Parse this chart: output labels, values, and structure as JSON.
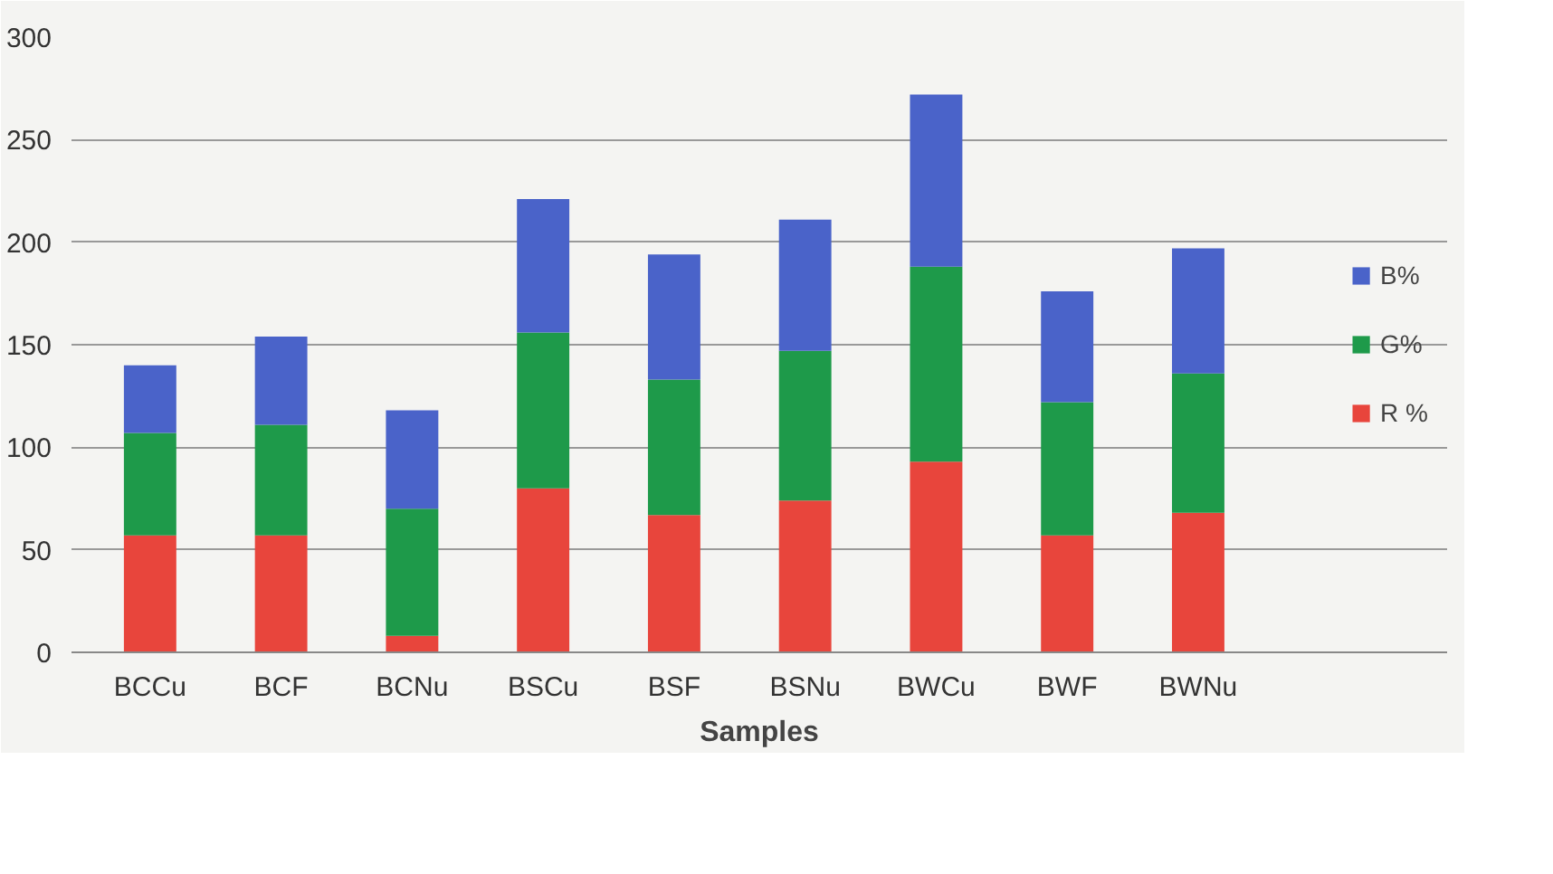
{
  "chart_data": {
    "type": "bar",
    "stacked": true,
    "xlabel": "Samples",
    "categories": [
      "BCCu",
      "BCF",
      "BCNu",
      "BSCu",
      "BSF",
      "BSNu",
      "BWCu",
      "BWF",
      "BWNu"
    ],
    "series": [
      {
        "name": "R %",
        "color": "#e8453c",
        "values": [
          57,
          57,
          8,
          80,
          67,
          74,
          93,
          57,
          68
        ]
      },
      {
        "name": "G%",
        "color": "#1e9a4a",
        "values": [
          50,
          54,
          62,
          76,
          66,
          73,
          95,
          65,
          68
        ]
      },
      {
        "name": "B%",
        "color": "#4a63c9",
        "values": [
          33,
          43,
          48,
          65,
          61,
          64,
          84,
          54,
          61
        ]
      }
    ],
    "ylim": [
      0,
      300
    ],
    "yticks": [
      0,
      50,
      100,
      150,
      200,
      250,
      300
    ],
    "grid": "y",
    "legend": "right"
  }
}
